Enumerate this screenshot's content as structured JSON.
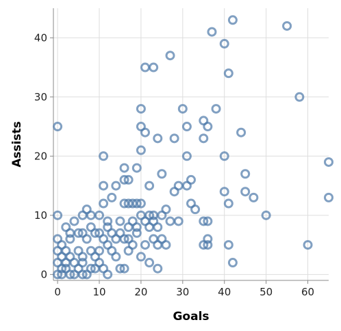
{
  "chart_data": {
    "type": "scatter",
    "xlabel": "Goals",
    "ylabel": "Assists",
    "xlim": [
      -1,
      65
    ],
    "ylim": [
      -1,
      45
    ],
    "x_ticks": [
      0,
      10,
      20,
      30,
      40,
      50,
      60
    ],
    "y_ticks": [
      0,
      10,
      20,
      30,
      40
    ],
    "grid": true,
    "marker": "open-circle",
    "color": "#4c78a8",
    "points": [
      [
        42,
        43
      ],
      [
        37,
        41
      ],
      [
        55,
        42
      ],
      [
        40,
        39
      ],
      [
        27,
        37
      ],
      [
        21,
        35
      ],
      [
        23,
        35
      ],
      [
        41,
        34
      ],
      [
        58,
        30
      ],
      [
        20,
        28
      ],
      [
        30,
        28
      ],
      [
        38,
        28
      ],
      [
        0,
        25
      ],
      [
        20,
        25
      ],
      [
        31,
        25
      ],
      [
        35,
        26
      ],
      [
        36,
        25
      ],
      [
        21,
        24
      ],
      [
        44,
        24
      ],
      [
        24,
        23
      ],
      [
        28,
        23
      ],
      [
        35,
        23
      ],
      [
        20,
        21
      ],
      [
        11,
        20
      ],
      [
        31,
        20
      ],
      [
        40,
        20
      ],
      [
        65,
        19
      ],
      [
        16,
        18
      ],
      [
        19,
        18
      ],
      [
        25,
        17
      ],
      [
        45,
        17
      ],
      [
        16,
        16
      ],
      [
        17,
        16
      ],
      [
        32,
        16
      ],
      [
        31,
        15
      ],
      [
        29,
        15
      ],
      [
        11,
        15
      ],
      [
        14,
        15
      ],
      [
        22,
        15
      ],
      [
        28,
        14
      ],
      [
        40,
        14
      ],
      [
        45,
        14
      ],
      [
        65,
        13
      ],
      [
        47,
        13
      ],
      [
        13,
        13
      ],
      [
        17,
        12
      ],
      [
        19,
        12
      ],
      [
        16,
        12
      ],
      [
        41,
        12
      ],
      [
        32,
        12
      ],
      [
        20,
        12
      ],
      [
        18,
        12
      ],
      [
        11,
        12
      ],
      [
        26,
        11
      ],
      [
        33,
        11
      ],
      [
        7,
        11
      ],
      [
        35,
        9
      ],
      [
        36,
        9
      ],
      [
        50,
        10
      ],
      [
        0,
        10
      ],
      [
        20,
        10
      ],
      [
        22,
        10
      ],
      [
        29,
        9
      ],
      [
        25,
        10
      ],
      [
        23,
        10
      ],
      [
        12,
        9
      ],
      [
        21,
        9
      ],
      [
        6,
        10
      ],
      [
        8,
        10
      ],
      [
        10,
        10
      ],
      [
        18,
        9
      ],
      [
        15,
        9
      ],
      [
        4,
        9
      ],
      [
        19,
        7
      ],
      [
        13,
        7
      ],
      [
        12,
        8
      ],
      [
        9,
        7
      ],
      [
        6,
        7
      ],
      [
        22,
        8
      ],
      [
        24,
        8
      ],
      [
        27,
        9
      ],
      [
        17,
        8
      ],
      [
        25,
        6
      ],
      [
        23,
        6
      ],
      [
        16,
        6
      ],
      [
        14,
        6
      ],
      [
        11,
        6
      ],
      [
        3,
        6
      ],
      [
        21,
        5
      ],
      [
        26,
        5
      ],
      [
        24,
        5
      ],
      [
        35,
        5
      ],
      [
        36,
        5
      ],
      [
        41,
        5
      ],
      [
        60,
        5
      ],
      [
        36,
        6
      ],
      [
        18,
        5
      ],
      [
        13,
        4
      ],
      [
        10,
        4
      ],
      [
        8,
        4
      ],
      [
        5,
        4
      ],
      [
        2,
        4
      ],
      [
        20,
        3
      ],
      [
        17,
        4
      ],
      [
        14,
        3
      ],
      [
        9,
        3
      ],
      [
        6,
        3
      ],
      [
        3,
        3
      ],
      [
        1,
        3
      ],
      [
        22,
        2
      ],
      [
        42,
        2
      ],
      [
        24,
        1
      ],
      [
        15,
        1
      ],
      [
        16,
        1
      ],
      [
        12,
        0
      ],
      [
        7,
        0
      ],
      [
        3,
        0
      ],
      [
        0,
        0
      ],
      [
        1,
        1
      ],
      [
        2,
        2
      ],
      [
        4,
        2
      ],
      [
        5,
        1
      ],
      [
        6,
        2
      ],
      [
        8,
        1
      ],
      [
        10,
        2
      ],
      [
        0,
        2
      ],
      [
        1,
        0
      ],
      [
        2,
        1
      ],
      [
        4,
        0
      ],
      [
        6,
        0
      ],
      [
        9,
        1
      ],
      [
        11,
        1
      ],
      [
        0,
        4
      ],
      [
        1,
        5
      ],
      [
        0,
        6
      ],
      [
        3,
        7
      ],
      [
        2,
        8
      ],
      [
        5,
        7
      ],
      [
        7,
        6
      ],
      [
        8,
        8
      ],
      [
        10,
        7
      ],
      [
        12,
        5
      ],
      [
        15,
        7
      ],
      [
        17,
        6
      ],
      [
        19,
        8
      ],
      [
        23,
        9
      ]
    ]
  }
}
